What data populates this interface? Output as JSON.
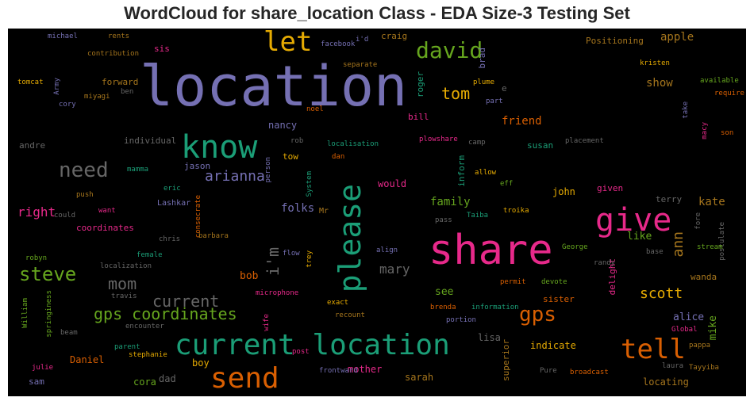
{
  "title": "WordCloud for share_location Class - EDA Size-3 Testing Set",
  "colors": {
    "teal": "#1b9e77",
    "orange": "#d95f02",
    "purple": "#7570b3",
    "pink": "#e7298a",
    "green": "#66a61e",
    "yellow": "#e6ab02",
    "brown": "#a6761d",
    "gray": "#666666",
    "background": "#000000"
  },
  "words": [
    {
      "text": "location",
      "color": "purple"
    },
    {
      "text": "share",
      "color": "pink"
    },
    {
      "text": "current location",
      "color": "teal"
    },
    {
      "text": "know",
      "color": "teal"
    },
    {
      "text": "give",
      "color": "pink"
    },
    {
      "text": "please",
      "color": "teal"
    },
    {
      "text": "send",
      "color": "orange"
    },
    {
      "text": "tell",
      "color": "orange"
    },
    {
      "text": "let",
      "color": "yellow"
    },
    {
      "text": "david",
      "color": "green"
    },
    {
      "text": "need",
      "color": "gray"
    },
    {
      "text": "steve",
      "color": "green"
    },
    {
      "text": "gps coordinates",
      "color": "green"
    },
    {
      "text": "gps",
      "color": "orange"
    },
    {
      "text": "mom",
      "color": "gray"
    },
    {
      "text": "current",
      "color": "gray"
    },
    {
      "text": "arianna",
      "color": "purple"
    },
    {
      "text": "tom",
      "color": "yellow"
    },
    {
      "text": "scott",
      "color": "yellow"
    },
    {
      "text": "i'm",
      "color": "gray"
    },
    {
      "text": "right",
      "color": "pink"
    },
    {
      "text": "mary",
      "color": "gray"
    },
    {
      "text": "ann",
      "color": "brown"
    },
    {
      "text": "folks",
      "color": "purple"
    },
    {
      "text": "family",
      "color": "green"
    },
    {
      "text": "kate",
      "color": "brown"
    },
    {
      "text": "apple",
      "color": "brown"
    },
    {
      "text": "friend",
      "color": "orange"
    },
    {
      "text": "show",
      "color": "brown"
    },
    {
      "text": "nancy",
      "color": "purple"
    },
    {
      "text": "bob",
      "color": "orange"
    },
    {
      "text": "see",
      "color": "green"
    },
    {
      "text": "like",
      "color": "green"
    },
    {
      "text": "alice",
      "color": "purple"
    },
    {
      "text": "mike",
      "color": "green"
    },
    {
      "text": "delight",
      "color": "pink"
    },
    {
      "text": "sister",
      "color": "orange"
    },
    {
      "text": "lisa",
      "color": "gray"
    },
    {
      "text": "indicate",
      "color": "yellow"
    },
    {
      "text": "superior",
      "color": "brown"
    },
    {
      "text": "sarah",
      "color": "brown"
    },
    {
      "text": "mother",
      "color": "pink"
    },
    {
      "text": "Daniel",
      "color": "orange"
    },
    {
      "text": "cora",
      "color": "green"
    },
    {
      "text": "dad",
      "color": "gray"
    },
    {
      "text": "boy",
      "color": "yellow"
    },
    {
      "text": "sam",
      "color": "purple"
    },
    {
      "text": "locating",
      "color": "brown"
    },
    {
      "text": "john",
      "color": "yellow"
    },
    {
      "text": "given",
      "color": "pink"
    },
    {
      "text": "terry",
      "color": "gray"
    },
    {
      "text": "would",
      "color": "pink"
    },
    {
      "text": "inform",
      "color": "teal"
    },
    {
      "text": "susan",
      "color": "teal"
    },
    {
      "text": "forward",
      "color": "brown"
    },
    {
      "text": "sis",
      "color": "pink"
    },
    {
      "text": "Positioning",
      "color": "brown"
    },
    {
      "text": "craig",
      "color": "brown"
    },
    {
      "text": "roger",
      "color": "teal"
    },
    {
      "text": "brad",
      "color": "purple"
    },
    {
      "text": "e",
      "color": "gray"
    },
    {
      "text": "bill",
      "color": "pink"
    },
    {
      "text": "individual",
      "color": "gray"
    },
    {
      "text": "andre",
      "color": "gray"
    },
    {
      "text": "jason",
      "color": "purple"
    },
    {
      "text": "tow",
      "color": "yellow"
    },
    {
      "text": "coordinates",
      "color": "pink"
    },
    {
      "text": "wanda",
      "color": "brown"
    },
    {
      "text": "Lashkar",
      "color": "purple"
    },
    {
      "text": "Mr",
      "color": "brown"
    },
    {
      "text": "michael",
      "color": "purple"
    },
    {
      "text": "rents",
      "color": "brown"
    },
    {
      "text": "i'd",
      "color": "purple"
    },
    {
      "text": "facebook",
      "color": "purple"
    },
    {
      "text": "contribution",
      "color": "brown"
    },
    {
      "text": "separate",
      "color": "brown"
    },
    {
      "text": "plume",
      "color": "yellow"
    },
    {
      "text": "tomcat",
      "color": "yellow"
    },
    {
      "text": "Army",
      "color": "purple"
    },
    {
      "text": "miyagi",
      "color": "brown"
    },
    {
      "text": "ben",
      "color": "gray"
    },
    {
      "text": "cory",
      "color": "purple"
    },
    {
      "text": "noel",
      "color": "orange"
    },
    {
      "text": "part",
      "color": "purple"
    },
    {
      "text": "kristen",
      "color": "yellow"
    },
    {
      "text": "available",
      "color": "green"
    },
    {
      "text": "require",
      "color": "orange"
    },
    {
      "text": "take",
      "color": "purple"
    },
    {
      "text": "son",
      "color": "orange"
    },
    {
      "text": "macy",
      "color": "pink"
    },
    {
      "text": "rob",
      "color": "gray"
    },
    {
      "text": "localisation",
      "color": "teal"
    },
    {
      "text": "plowshare",
      "color": "pink"
    },
    {
      "text": "camp",
      "color": "gray"
    },
    {
      "text": "placement",
      "color": "gray"
    },
    {
      "text": "dan",
      "color": "orange"
    },
    {
      "text": "mamma",
      "color": "teal"
    },
    {
      "text": "person",
      "color": "purple"
    },
    {
      "text": "System",
      "color": "teal"
    },
    {
      "text": "allow",
      "color": "yellow"
    },
    {
      "text": "eff",
      "color": "green"
    },
    {
      "text": "push",
      "color": "brown"
    },
    {
      "text": "eric",
      "color": "teal"
    },
    {
      "text": "consecrate",
      "color": "orange"
    },
    {
      "text": "want",
      "color": "pink"
    },
    {
      "text": "could",
      "color": "gray"
    },
    {
      "text": "pass",
      "color": "gray"
    },
    {
      "text": "Taiba",
      "color": "teal"
    },
    {
      "text": "troika",
      "color": "yellow"
    },
    {
      "text": "chris",
      "color": "gray"
    },
    {
      "text": "barbara",
      "color": "brown"
    },
    {
      "text": "George",
      "color": "green"
    },
    {
      "text": "fore",
      "color": "gray"
    },
    {
      "text": "postulate",
      "color": "gray"
    },
    {
      "text": "robyn",
      "color": "green"
    },
    {
      "text": "female",
      "color": "teal"
    },
    {
      "text": "flow",
      "color": "purple"
    },
    {
      "text": "trey",
      "color": "yellow"
    },
    {
      "text": "align",
      "color": "purple"
    },
    {
      "text": "randy",
      "color": "gray"
    },
    {
      "text": "base",
      "color": "gray"
    },
    {
      "text": "stream",
      "color": "green"
    },
    {
      "text": "localization",
      "color": "gray"
    },
    {
      "text": "permit",
      "color": "orange"
    },
    {
      "text": "devote",
      "color": "green"
    },
    {
      "text": "travis",
      "color": "gray"
    },
    {
      "text": "microphone",
      "color": "pink"
    },
    {
      "text": "exact",
      "color": "yellow"
    },
    {
      "text": "brenda",
      "color": "orange"
    },
    {
      "text": "information",
      "color": "teal"
    },
    {
      "text": "William",
      "color": "green"
    },
    {
      "text": "springiness",
      "color": "green"
    },
    {
      "text": "encounter",
      "color": "gray"
    },
    {
      "text": "wife",
      "color": "pink"
    },
    {
      "text": "recount",
      "color": "brown"
    },
    {
      "text": "portion",
      "color": "purple"
    },
    {
      "text": "Global",
      "color": "pink"
    },
    {
      "text": "beam",
      "color": "gray"
    },
    {
      "text": "parent",
      "color": "teal"
    },
    {
      "text": "stephanie",
      "color": "yellow"
    },
    {
      "text": "post",
      "color": "pink"
    },
    {
      "text": "pappa",
      "color": "brown"
    },
    {
      "text": "julie",
      "color": "pink"
    },
    {
      "text": "frontward",
      "color": "purple"
    },
    {
      "text": "Pure",
      "color": "gray"
    },
    {
      "text": "broadcast",
      "color": "orange"
    },
    {
      "text": "laura",
      "color": "gray"
    },
    {
      "text": "Tayyiba",
      "color": "brown"
    }
  ]
}
